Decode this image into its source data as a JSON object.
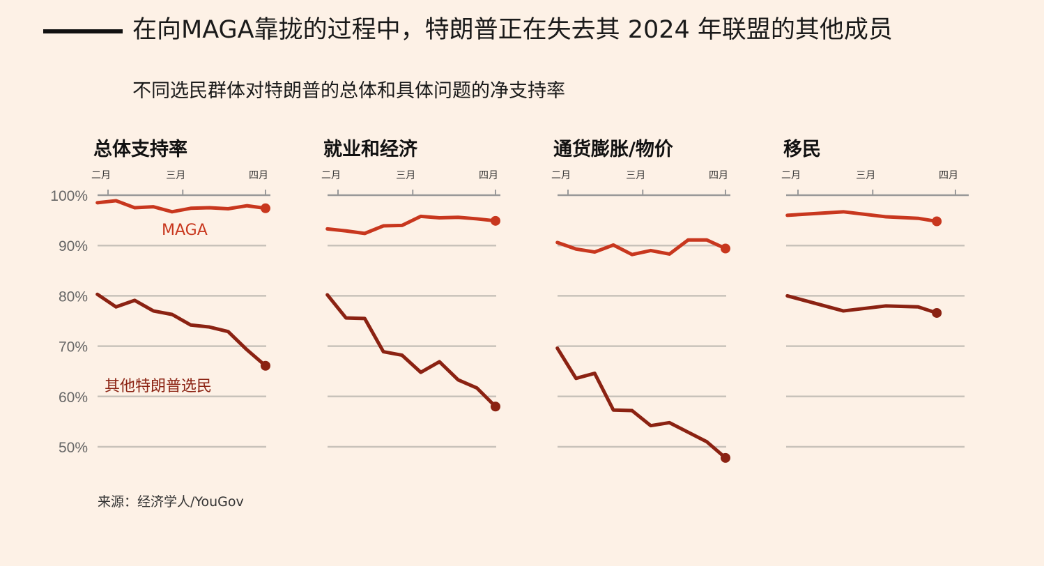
{
  "title": "在向MAGA靠拢的过程中，特朗普正在失去其 2024 年联盟的其他成员",
  "subtitle": "不同选民群体对特朗普的总体和具体问题的净支持率",
  "source": "来源：经济学人/YouGov",
  "colors": {
    "maga": "#c8371e",
    "other": "#8b2212",
    "grid": "#c8c2ba",
    "axis": "#999"
  },
  "chart_data": {
    "type": "line",
    "ylim": [
      45,
      100
    ],
    "yticks": [
      {
        "v": 100,
        "label": "100%"
      },
      {
        "v": 90,
        "label": "90%"
      },
      {
        "v": 80,
        "label": "80%"
      },
      {
        "v": 70,
        "label": "70%"
      },
      {
        "v": 60,
        "label": "60%"
      },
      {
        "v": 50,
        "label": "50%"
      }
    ],
    "xunit": "days since Feb 1",
    "xticks": [
      {
        "v": 0,
        "label": "二月"
      },
      {
        "v": 28,
        "label": "三月"
      },
      {
        "v": 59,
        "label": "四月"
      }
    ],
    "series_labels": {
      "maga": "MAGA",
      "other": "其他特朗普选民"
    },
    "panels": [
      {
        "title": "总体支持率",
        "x": [
          -4,
          3,
          10,
          17,
          24,
          31,
          38,
          45,
          52,
          59
        ],
        "maga": [
          98.5,
          98.9,
          97.5,
          97.7,
          96.7,
          97.4,
          97.5,
          97.3,
          97.9,
          97.4
        ],
        "other": [
          80.3,
          77.8,
          79.1,
          77.0,
          76.3,
          74.2,
          73.8,
          72.9,
          69.3,
          66.1
        ]
      },
      {
        "title": "就业和经济",
        "x": [
          -4,
          3,
          10,
          17,
          24,
          31,
          38,
          45,
          52,
          59
        ],
        "maga": [
          93.3,
          92.9,
          92.4,
          93.9,
          94.0,
          95.8,
          95.5,
          95.6,
          95.3,
          94.9
        ],
        "other": [
          80.2,
          75.6,
          75.5,
          68.9,
          68.2,
          64.8,
          66.9,
          63.3,
          61.7,
          58.0
        ]
      },
      {
        "title": "通货膨胀/物价",
        "x": [
          -4,
          3,
          10,
          17,
          24,
          31,
          38,
          45,
          52,
          59
        ],
        "maga": [
          90.6,
          89.3,
          88.7,
          90.1,
          88.2,
          89.0,
          88.3,
          91.1,
          91.1,
          89.4
        ],
        "other": [
          69.6,
          63.6,
          64.6,
          57.3,
          57.2,
          54.2,
          54.8,
          52.9,
          51.0,
          47.8
        ]
      },
      {
        "title": "移民",
        "x": [
          -4,
          17,
          33,
          45,
          52
        ],
        "maga": [
          96.0,
          96.7,
          95.7,
          95.4,
          94.8
        ],
        "other": [
          80.0,
          77.0,
          78.0,
          77.8,
          76.6
        ]
      }
    ]
  }
}
